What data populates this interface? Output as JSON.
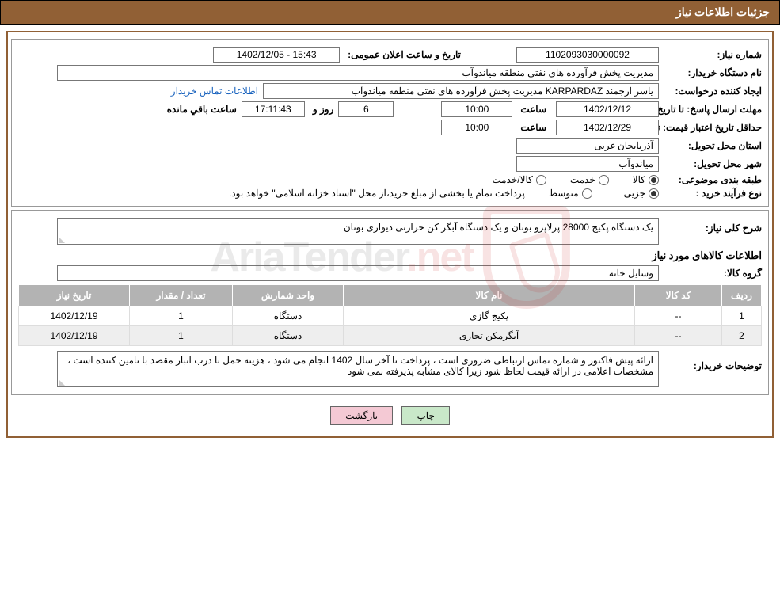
{
  "header": {
    "title": "جزئیات اطلاعات نیاز"
  },
  "fields": {
    "need_no_label": "شماره نیاز:",
    "need_no": "1102093030000092",
    "announce_label": "تاریخ و ساعت اعلان عمومی:",
    "announce_value": "1402/12/05 - 15:43",
    "buyer_org_label": "نام دستگاه خریدار:",
    "buyer_org": "مدیریت پخش فرآورده های نفتی منطقه میاندوآب",
    "creator_label": "ایجاد کننده درخواست:",
    "creator": "یاسر ارجمند KARPARDAZ مدیریت پخش فرآورده های نفتی منطقه میاندوآب",
    "contact_link": "اطلاعات تماس خریدار",
    "deadline_label": "مهلت ارسال پاسخ:",
    "to_date_label": "تا تاریخ:",
    "deadline_date": "1402/12/12",
    "time_label": "ساعت",
    "deadline_time": "10:00",
    "days_remaining": "6",
    "days_word": "روز و",
    "time_remaining": "17:11:43",
    "remaining_label": "ساعت باقي مانده",
    "validity_label": "حداقل تاریخ اعتبار قیمت:",
    "validity_date": "1402/12/29",
    "validity_time": "10:00",
    "delivery_province_label": "استان محل تحویل:",
    "delivery_province": "آذربایجان غربی",
    "delivery_city_label": "شهر محل تحویل:",
    "delivery_city": "میاندوآب",
    "category_label": "طبقه بندی موضوعی:",
    "cat_goods": "کالا",
    "cat_service": "خدمت",
    "cat_goods_service": "کالا/خدمت",
    "process_label": "نوع فرآیند خرید :",
    "process_partial": "جزیی",
    "process_medium": "متوسط",
    "process_note": "پرداخت تمام یا بخشی از مبلغ خرید،از محل \"اسناد خزانه اسلامی\" خواهد بود.",
    "desc_label": "شرح کلی نیاز:",
    "desc_text": "یک دستگاه پکیج 28000 پرلاپرو بوتان و یک دستگاه آبگر کن حرارتی دیواری بوتان",
    "items_title": "اطلاعات کالاهای مورد نیاز",
    "group_label": "گروه کالا:",
    "group_value": "وسایل خانه",
    "buyer_notes_label": "توضیحات خریدار:",
    "buyer_notes": "ارائه پیش فاکتور و شماره تماس ارتباطی ضروری است ، پرداخت تا آخر سال 1402 انجام می شود ، هزینه حمل تا درب انبار مقصد با تامین کننده است ، مشخصات اعلامی در ارائه قیمت لحاظ شود زیرا کالای مشابه پذیرفته نمی شود"
  },
  "table": {
    "headers": {
      "row": "ردیف",
      "code": "کد کالا",
      "name": "نام کالا",
      "unit": "واحد شمارش",
      "qty": "تعداد / مقدار",
      "date": "تاریخ نیاز"
    },
    "rows": [
      {
        "n": "1",
        "code": "--",
        "name": "پکیج گازی",
        "unit": "دستگاه",
        "qty": "1",
        "date": "1402/12/19"
      },
      {
        "n": "2",
        "code": "--",
        "name": "آبگرمکن تجاری",
        "unit": "دستگاه",
        "qty": "1",
        "date": "1402/12/19"
      }
    ]
  },
  "buttons": {
    "print": "چاپ",
    "back": "بازگشت"
  },
  "watermark": {
    "text_a": "AriaTender",
    "text_b": ".net"
  },
  "colors": {
    "header_bg": "#916035",
    "link": "#1560bd",
    "th_bg": "#b3b3b3",
    "btn_print": "#c9e8c9",
    "btn_back": "#f4c9d4"
  }
}
